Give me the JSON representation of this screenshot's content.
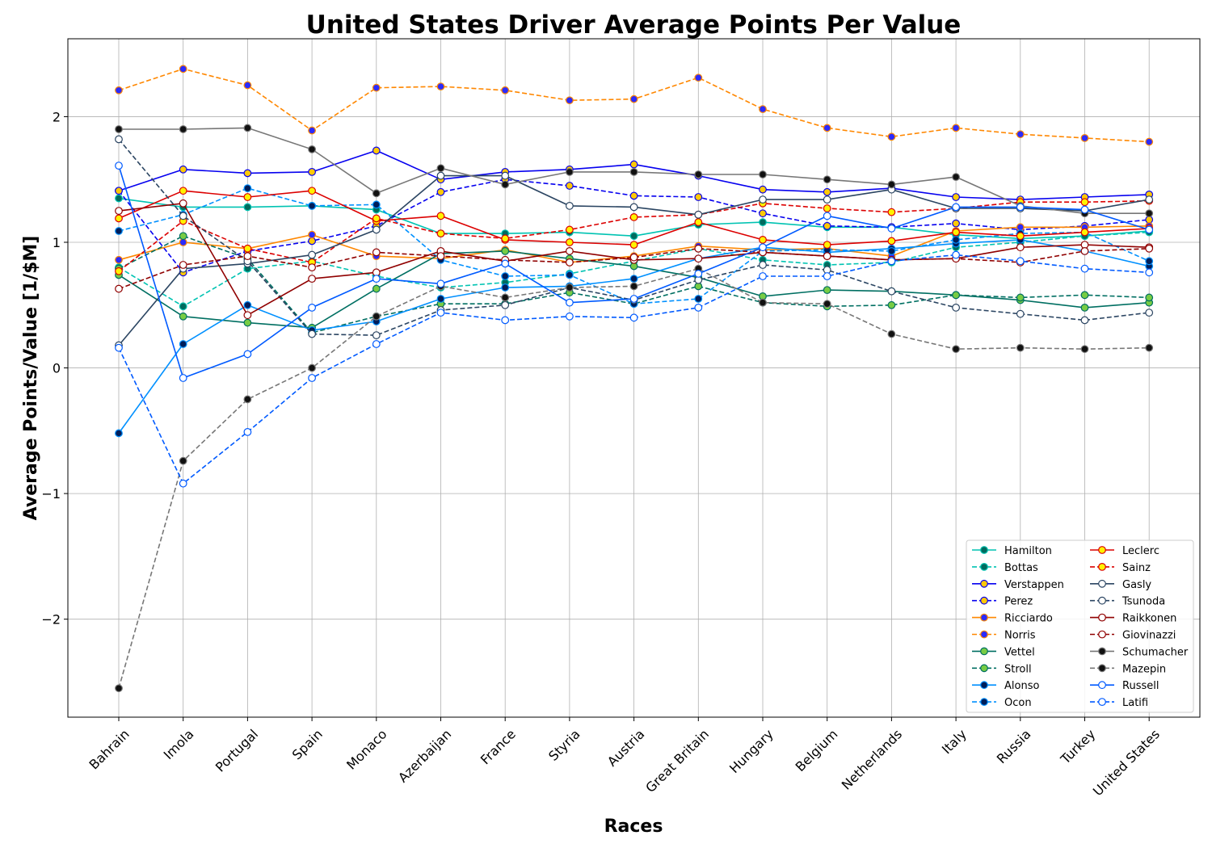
{
  "chart_data": {
    "type": "line",
    "title": "United States Driver Average Points Per Value",
    "xlabel": "Races",
    "ylabel": "Average Points/Value [1/$M]",
    "ylim": [
      -2.78,
      2.62
    ],
    "yticks": [
      -2,
      -1,
      0,
      1,
      2
    ],
    "ytick_labels": [
      "−2",
      "−1",
      "0",
      "1",
      "2"
    ],
    "grid": true,
    "legend_position": "lower-right",
    "legend_columns": 2,
    "categories": [
      "Bahrain",
      "Imola",
      "Portugal",
      "Spain",
      "Monaco",
      "Azerbaijan",
      "France",
      "Styria",
      "Austria",
      "Great Britain",
      "Hungary",
      "Belgium",
      "Netherlands",
      "Italy",
      "Russia",
      "Turkey",
      "United States"
    ],
    "series": [
      {
        "name": "Hamilton",
        "color": "#00c3b2",
        "marker": "#006b5e",
        "dash": false,
        "values": [
          1.35,
          1.28,
          1.28,
          1.29,
          1.26,
          1.07,
          1.07,
          1.08,
          1.05,
          1.14,
          1.16,
          1.12,
          1.12,
          1.06,
          1.03,
          1.05,
          1.09
        ]
      },
      {
        "name": "Bottas",
        "color": "#00c3b2",
        "marker": "#006b5e",
        "dash": true,
        "values": [
          0.8,
          0.49,
          0.79,
          0.85,
          0.73,
          0.64,
          0.68,
          0.75,
          0.85,
          0.95,
          0.86,
          0.82,
          0.84,
          0.96,
          1.0,
          1.05,
          1.08
        ]
      },
      {
        "name": "Verstappen",
        "color": "#0600ef",
        "marker": "#ffc906",
        "dash": false,
        "values": [
          1.41,
          1.58,
          1.55,
          1.56,
          1.73,
          1.5,
          1.56,
          1.58,
          1.62,
          1.53,
          1.42,
          1.4,
          1.43,
          1.36,
          1.34,
          1.36,
          1.38
        ]
      },
      {
        "name": "Perez",
        "color": "#0600ef",
        "marker": "#ffc906",
        "dash": true,
        "values": [
          1.41,
          0.76,
          0.93,
          1.01,
          1.13,
          1.4,
          1.5,
          1.45,
          1.37,
          1.36,
          1.23,
          1.13,
          1.12,
          1.15,
          1.1,
          1.13,
          1.18
        ]
      },
      {
        "name": "Ricciardo",
        "color": "#ff8700",
        "marker": "#2b2bff",
        "dash": false,
        "values": [
          0.86,
          1.0,
          0.95,
          1.06,
          0.89,
          0.87,
          0.94,
          0.84,
          0.89,
          0.97,
          0.94,
          0.95,
          0.89,
          1.09,
          1.12,
          1.12,
          1.13
        ]
      },
      {
        "name": "Norris",
        "color": "#ff8700",
        "marker": "#2b2bff",
        "dash": true,
        "values": [
          2.21,
          2.38,
          2.25,
          1.89,
          2.23,
          2.24,
          2.21,
          2.13,
          2.14,
          2.31,
          2.06,
          1.91,
          1.84,
          1.91,
          1.86,
          1.83,
          1.8
        ]
      },
      {
        "name": "Vettel",
        "color": "#006f62",
        "marker": "#77cc44",
        "dash": false,
        "values": [
          0.74,
          0.41,
          0.36,
          0.32,
          0.63,
          0.91,
          0.93,
          0.87,
          0.81,
          0.72,
          0.57,
          0.62,
          0.61,
          0.58,
          0.54,
          0.48,
          0.52
        ]
      },
      {
        "name": "Stroll",
        "color": "#006f62",
        "marker": "#77cc44",
        "dash": true,
        "values": [
          0.79,
          1.05,
          0.87,
          0.28,
          0.41,
          0.51,
          0.51,
          0.6,
          0.51,
          0.65,
          0.52,
          0.49,
          0.5,
          0.58,
          0.56,
          0.58,
          0.56
        ]
      },
      {
        "name": "Alonso",
        "color": "#0090ff",
        "marker": "#001e5a",
        "dash": false,
        "values": [
          -0.52,
          0.19,
          0.5,
          0.3,
          0.37,
          0.55,
          0.64,
          0.65,
          0.71,
          0.87,
          0.96,
          0.92,
          0.95,
          0.99,
          1.02,
          0.93,
          0.81
        ]
      },
      {
        "name": "Ocon",
        "color": "#0090ff",
        "marker": "#001e5a",
        "dash": true,
        "values": [
          1.09,
          1.22,
          1.43,
          1.29,
          1.3,
          0.86,
          0.73,
          0.74,
          0.51,
          0.55,
          0.93,
          0.94,
          0.93,
          1.02,
          1.07,
          1.08,
          0.85
        ]
      },
      {
        "name": "Leclerc",
        "color": "#dc0000",
        "marker": "#fff200",
        "dash": false,
        "values": [
          1.19,
          1.41,
          1.36,
          1.41,
          1.17,
          1.21,
          1.02,
          1.0,
          0.98,
          1.16,
          1.02,
          0.98,
          1.01,
          1.08,
          1.05,
          1.08,
          1.11
        ]
      },
      {
        "name": "Sainz",
        "color": "#dc0000",
        "marker": "#fff200",
        "dash": true,
        "values": [
          0.77,
          1.17,
          0.95,
          0.84,
          1.19,
          1.07,
          1.03,
          1.1,
          1.2,
          1.22,
          1.31,
          1.27,
          1.24,
          1.27,
          1.32,
          1.32,
          1.33
        ]
      },
      {
        "name": "Gasly",
        "color": "#2b4562",
        "marker": "#ffffff",
        "dash": false,
        "values": [
          0.18,
          0.79,
          0.83,
          0.9,
          1.1,
          1.53,
          1.53,
          1.29,
          1.28,
          1.22,
          1.34,
          1.34,
          1.42,
          1.27,
          1.27,
          1.25,
          1.34
        ]
      },
      {
        "name": "Tsunoda",
        "color": "#2b4562",
        "marker": "#ffffff",
        "dash": true,
        "values": [
          1.82,
          1.21,
          0.85,
          0.27,
          0.26,
          0.46,
          0.5,
          0.64,
          0.54,
          0.7,
          0.82,
          0.78,
          0.61,
          0.48,
          0.43,
          0.38,
          0.44
        ]
      },
      {
        "name": "Raikkonen",
        "color": "#900000",
        "marker": "#ffffff",
        "dash": false,
        "values": [
          1.25,
          1.31,
          0.42,
          0.71,
          0.76,
          0.93,
          0.85,
          0.93,
          0.86,
          0.87,
          0.92,
          0.89,
          0.86,
          0.87,
          0.96,
          0.98,
          0.96
        ]
      },
      {
        "name": "Giovinazzi",
        "color": "#900000",
        "marker": "#ffffff",
        "dash": true,
        "values": [
          0.63,
          0.82,
          0.89,
          0.8,
          0.92,
          0.89,
          0.86,
          0.84,
          0.88,
          0.95,
          0.92,
          0.89,
          0.86,
          0.87,
          0.84,
          0.93,
          0.95
        ]
      },
      {
        "name": "Schumacher",
        "color": "#777777",
        "marker": "#111111",
        "dash": false,
        "values": [
          1.9,
          1.9,
          1.91,
          1.74,
          1.39,
          1.59,
          1.46,
          1.56,
          1.56,
          1.54,
          1.54,
          1.5,
          1.46,
          1.52,
          1.29,
          1.23,
          1.23
        ]
      },
      {
        "name": "Mazepin",
        "color": "#777777",
        "marker": "#111111",
        "dash": true,
        "values": [
          -2.55,
          -0.74,
          -0.25,
          0.0,
          0.41,
          0.65,
          0.56,
          0.64,
          0.65,
          0.79,
          0.52,
          0.51,
          0.27,
          0.15,
          0.16,
          0.15,
          0.16
        ]
      },
      {
        "name": "Russell",
        "color": "#005aff",
        "marker": "#ffffff",
        "dash": false,
        "values": [
          1.61,
          -0.08,
          0.11,
          0.48,
          0.71,
          0.67,
          0.83,
          0.52,
          0.55,
          0.75,
          0.96,
          1.21,
          1.11,
          1.28,
          1.28,
          1.26,
          1.1
        ]
      },
      {
        "name": "Latifi",
        "color": "#005aff",
        "marker": "#ffffff",
        "dash": true,
        "values": [
          0.16,
          -0.92,
          -0.51,
          -0.08,
          0.19,
          0.44,
          0.38,
          0.41,
          0.4,
          0.48,
          0.73,
          0.73,
          0.85,
          0.9,
          0.85,
          0.79,
          0.76
        ]
      }
    ]
  }
}
